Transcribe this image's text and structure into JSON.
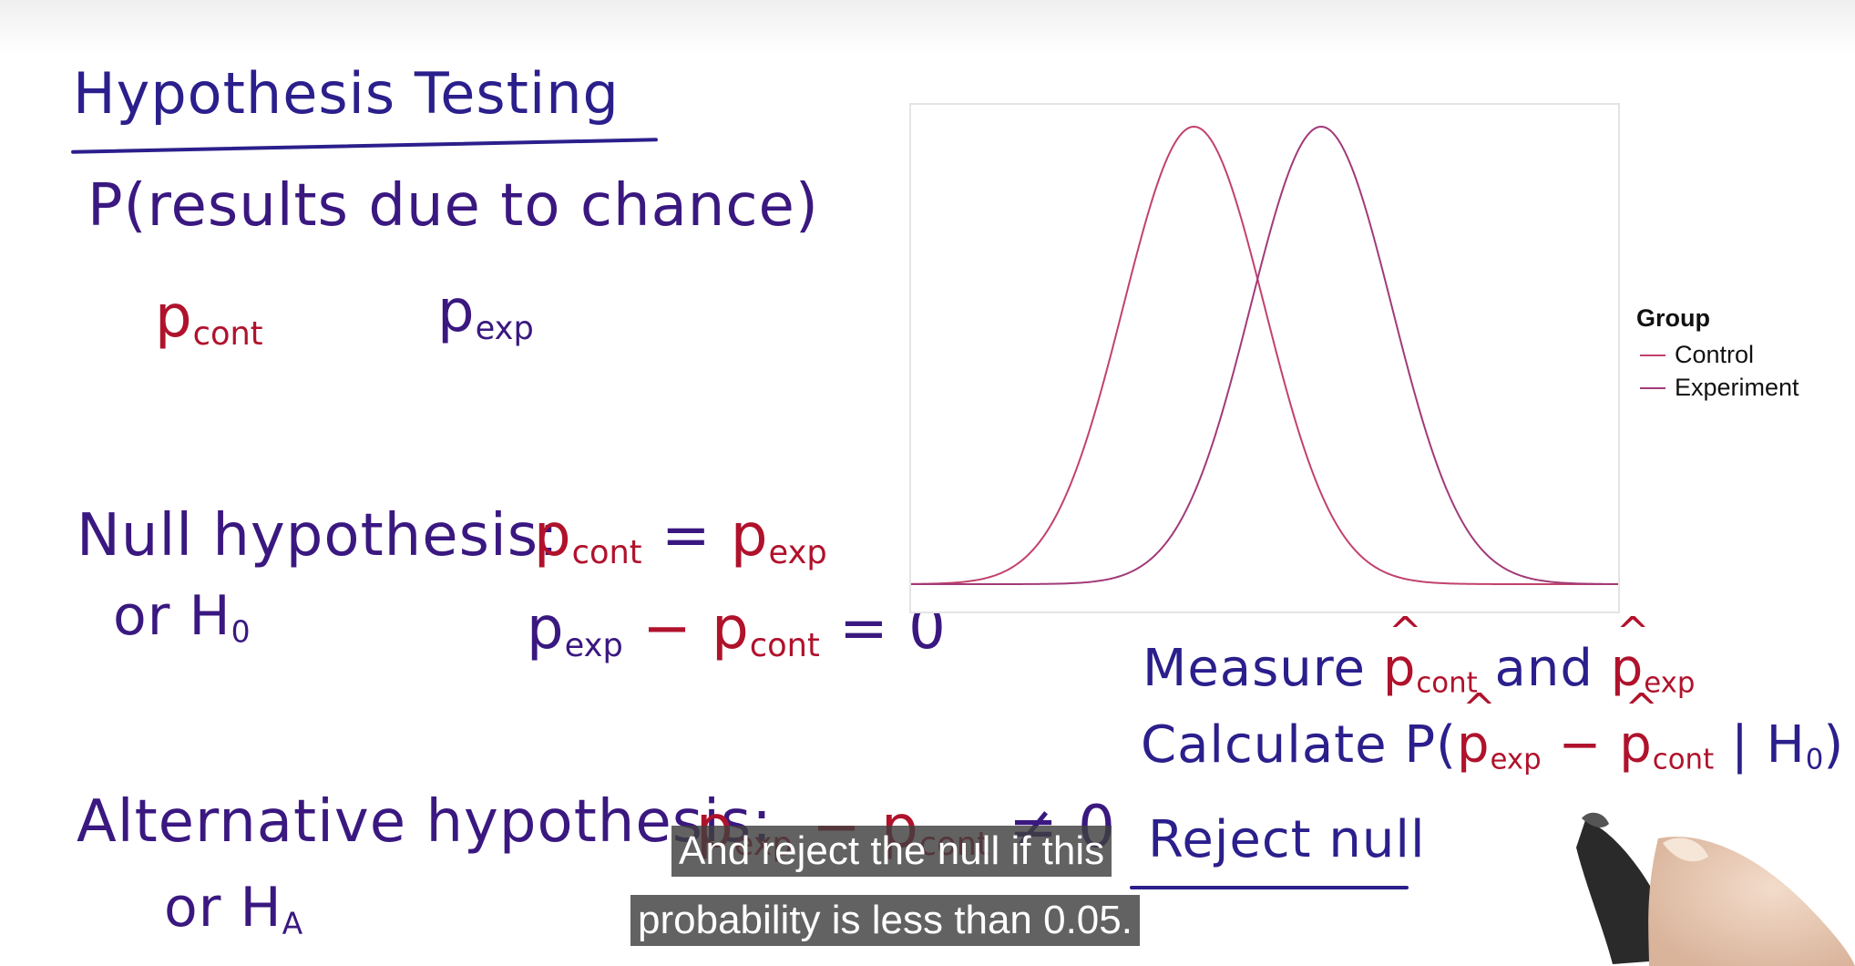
{
  "board": {
    "title": "Hypothesis Testing",
    "probability_line": "P(results due to chance)",
    "p_cont": {
      "base": "p",
      "sub": "cont"
    },
    "p_exp": {
      "base": "p",
      "sub": "exp"
    },
    "null_label": "Null hypothesis:",
    "null_alias": {
      "base": "or H",
      "sub": "0"
    },
    "null_equality": {
      "left": "p",
      "left_sub": "cont",
      "op": " = ",
      "right": "p",
      "right_sub": "exp"
    },
    "null_difference": {
      "a": "p",
      "a_sub": "exp",
      "minus": " − ",
      "b": "p",
      "b_sub": "cont",
      "tail": " = 0"
    },
    "alt_label": "Alternative hypothesis:",
    "alt_alias": {
      "base": "or H",
      "sub": "A"
    },
    "alt_difference": {
      "a": "p",
      "a_sub": "exp",
      "minus": " − ",
      "b": "p",
      "b_sub": "cont",
      "tail": " ≠ 0"
    },
    "measure": {
      "prefix": "Measure ",
      "a": "p",
      "a_sub": "cont",
      "mid": " and ",
      "b": "p",
      "b_sub": "exp"
    },
    "calculate": {
      "prefix": "Calculate  P(",
      "a": "p",
      "a_sub": "exp",
      "minus": " − ",
      "b": "p",
      "b_sub": "cont",
      "tail": " | H",
      "tail_sub": "0",
      "close": ")"
    },
    "reject": "Reject null"
  },
  "chart_data": {
    "type": "line",
    "x_range": [
      -4,
      6
    ],
    "series": [
      {
        "name": "Control",
        "color": "#c2426a",
        "mean": 0,
        "sd": 1
      },
      {
        "name": "Experiment",
        "color": "#a23a78",
        "mean": 1.8,
        "sd": 1
      }
    ],
    "legend": {
      "title": "Group",
      "position": "right"
    },
    "grid": false
  },
  "captions": {
    "line1": "And reject the null if this",
    "line2": "probability is less than 0.05."
  }
}
